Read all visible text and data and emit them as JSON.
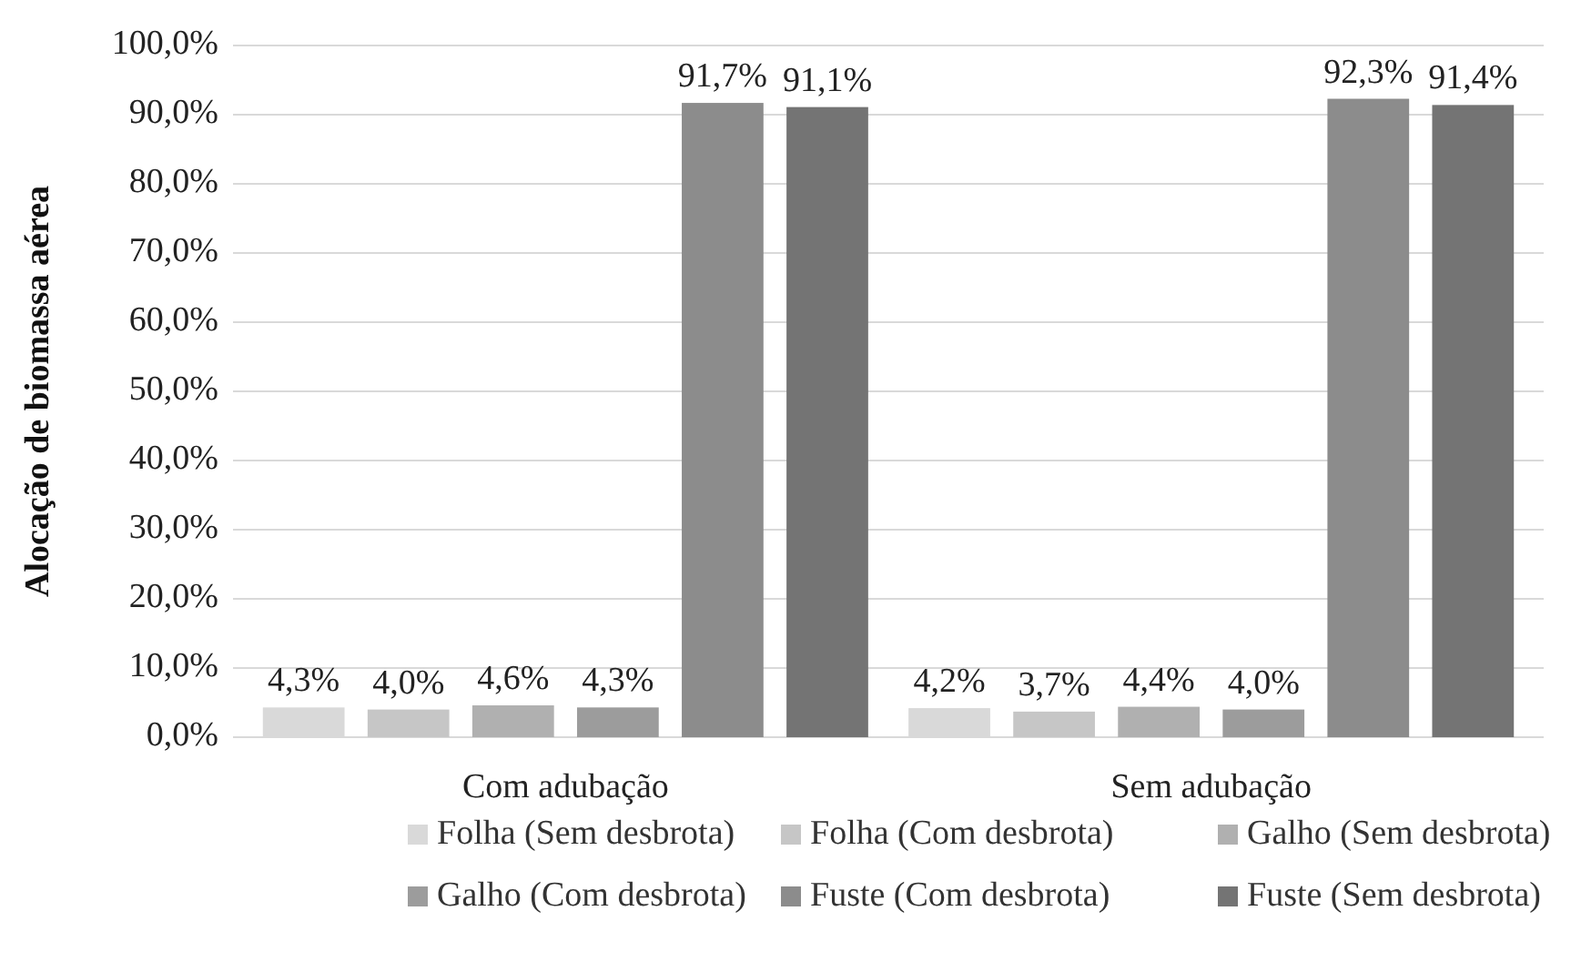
{
  "chart_data": {
    "type": "bar",
    "ylabel": "Alocação de biomassa aérea",
    "categories": [
      "Com adubação",
      "Sem adubação"
    ],
    "series": [
      {
        "name": "Folha (Sem desbrota)",
        "color": "#d9d9d9",
        "values": [
          4.3,
          4.2
        ],
        "value_labels": [
          "4,3%",
          "4,2%"
        ]
      },
      {
        "name": "Folha (Com desbrota)",
        "color": "#c6c6c6",
        "values": [
          4.0,
          3.7
        ],
        "value_labels": [
          "4,0%",
          "3,7%"
        ]
      },
      {
        "name": "Galho (Sem desbrota)",
        "color": "#b0b0b0",
        "values": [
          4.6,
          4.4
        ],
        "value_labels": [
          "4,6%",
          "4,4%"
        ]
      },
      {
        "name": "Galho (Com desbrota)",
        "color": "#9c9c9c",
        "values": [
          4.3,
          4.0
        ],
        "value_labels": [
          "4,3%",
          "4,0%"
        ]
      },
      {
        "name": "Fuste (Com desbrota)",
        "color": "#8c8c8c",
        "values": [
          91.7,
          92.3
        ],
        "value_labels": [
          "91,7%",
          "92,3%"
        ]
      },
      {
        "name": "Fuste (Sem desbrota)",
        "color": "#747474",
        "values": [
          91.1,
          91.4
        ],
        "value_labels": [
          "91,1%",
          "91,4%"
        ]
      }
    ],
    "ylim": [
      0,
      100
    ],
    "yticks": [
      {
        "value": 0,
        "label": "0,0%"
      },
      {
        "value": 10,
        "label": "10,0%"
      },
      {
        "value": 20,
        "label": "20,0%"
      },
      {
        "value": 30,
        "label": "30,0%"
      },
      {
        "value": 40,
        "label": "40,0%"
      },
      {
        "value": 50,
        "label": "50,0%"
      },
      {
        "value": 60,
        "label": "60,0%"
      },
      {
        "value": 70,
        "label": "70,0%"
      },
      {
        "value": 80,
        "label": "80,0%"
      },
      {
        "value": 90,
        "label": "90,0%"
      },
      {
        "value": 100,
        "label": "100,0%"
      }
    ],
    "grid": "y",
    "legend": "bottom"
  }
}
